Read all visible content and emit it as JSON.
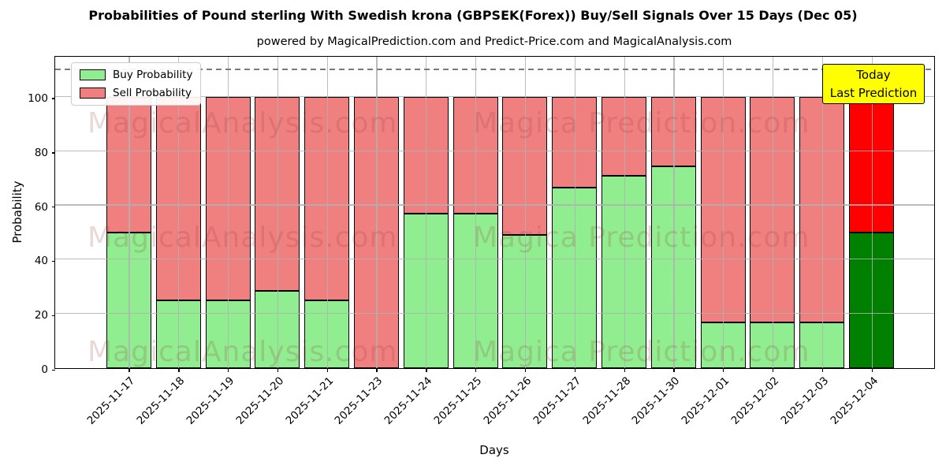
{
  "header": {
    "title": "Probabilities of Pound sterling With Swedish krona (GBPSEK(Forex)) Buy/Sell Signals Over 15 Days (Dec 05)",
    "subtitle": "powered by MagicalPrediction.com and Predict-Price.com and MagicalAnalysis.com"
  },
  "annotation": {
    "lines": [
      "Today",
      "Last Prediction"
    ],
    "bg_color": "#ffff00"
  },
  "watermarks": {
    "left_text": "MagicalAnalysis.com",
    "right_text": "Magica Prediction.com"
  },
  "chart_data": {
    "type": "bar",
    "stacked": true,
    "title": "Probabilities of Pound sterling With Swedish krona (GBPSEK(Forex)) Buy/Sell Signals Over 15 Days (Dec 05)",
    "xlabel": "Days",
    "ylabel": "Probability",
    "categories": [
      "2025-11-17",
      "2025-11-18",
      "2025-11-19",
      "2025-11-20",
      "2025-11-21",
      "2025-11-23",
      "2025-11-24",
      "2025-11-25",
      "2025-11-26",
      "2025-11-27",
      "2025-11-28",
      "2025-11-30",
      "2025-12-01",
      "2025-12-02",
      "2025-12-03",
      "2025-12-04"
    ],
    "series": [
      {
        "name": "Buy Probability",
        "color": "#90ee90",
        "values": [
          50,
          25,
          25,
          28.5,
          25,
          0,
          57,
          57,
          49,
          66.5,
          71,
          74.5,
          17,
          17,
          17,
          50
        ]
      },
      {
        "name": "Sell Probability",
        "color": "#f08080",
        "values": [
          50,
          75,
          75,
          71.5,
          75,
          100,
          43,
          43,
          51,
          33.5,
          29,
          25.5,
          83,
          83,
          83,
          50
        ]
      }
    ],
    "highlight_last_bar": {
      "buy_color": "#008000",
      "sell_color": "#ff0000",
      "label": "Today / Last Prediction"
    },
    "yticks": [
      0,
      20,
      40,
      60,
      80,
      100
    ],
    "ylim": [
      0,
      115.4
    ],
    "dashed_line_y": 110,
    "grid": true,
    "legend_position": "upper left"
  }
}
